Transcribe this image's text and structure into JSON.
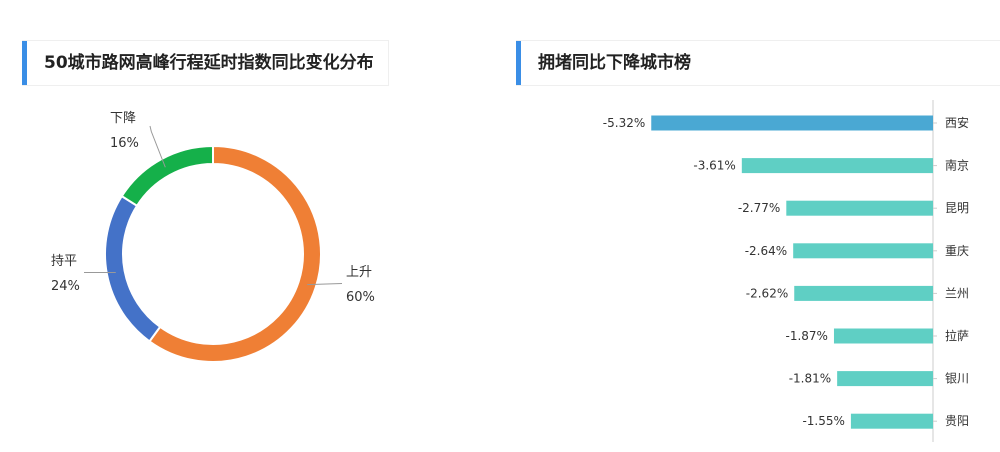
{
  "left_panel": {
    "title": "50城市路网高峰行程延时指数同比变化分布",
    "accent_color": "#3a8ee6"
  },
  "right_panel": {
    "title": "拥堵同比下降城市榜",
    "accent_color": "#3a8ee6"
  },
  "chart_data": [
    {
      "type": "pie",
      "style": "donut",
      "title": "50城市路网高峰行程延时指数同比变化分布",
      "slices": [
        {
          "label": "上升",
          "value": 60,
          "value_label": "60%",
          "color": "#ef7f35"
        },
        {
          "label": "持平",
          "value": 24,
          "value_label": "24%",
          "color": "#4472c8"
        },
        {
          "label": "下降",
          "value": 16,
          "value_label": "16%",
          "color": "#15b04a"
        }
      ]
    },
    {
      "type": "bar",
      "orientation": "horizontal",
      "title": "拥堵同比下降城市榜",
      "categories": [
        "西安",
        "南京",
        "昆明",
        "重庆",
        "兰州",
        "拉萨",
        "银川",
        "贵阳"
      ],
      "values": [
        -5.32,
        -3.61,
        -2.77,
        -2.64,
        -2.62,
        -1.87,
        -1.81,
        -1.55
      ],
      "value_labels": [
        "-5.32%",
        "-3.61%",
        "-2.77%",
        "-2.64%",
        "-2.62%",
        "-1.87%",
        "-1.81%",
        "-1.55%"
      ],
      "xlim": [
        -6.25,
        0
      ],
      "highlight_color": "#4aa8d3",
      "bar_color": "#5fcfc4",
      "axis_position": "right"
    }
  ]
}
